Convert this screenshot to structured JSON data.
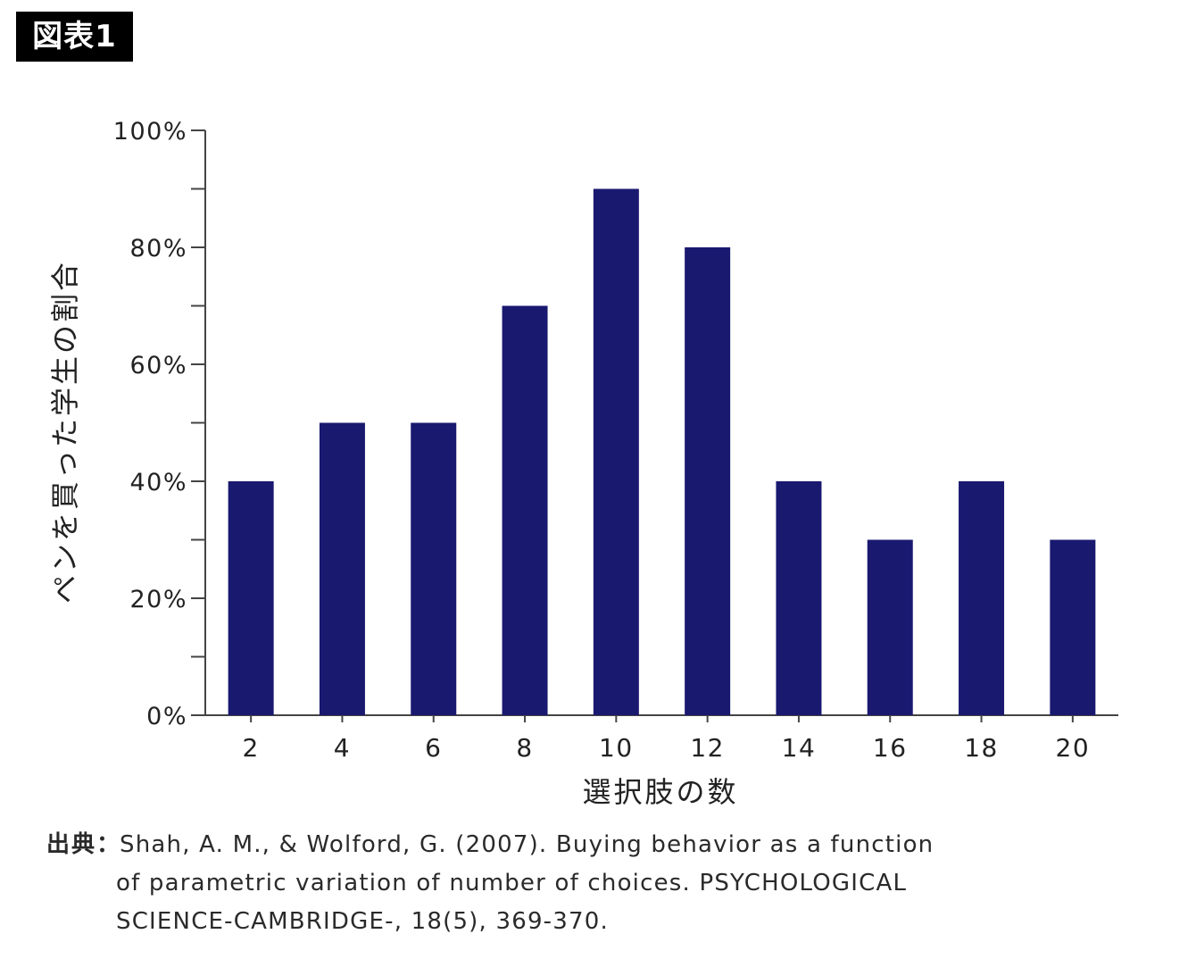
{
  "figure_tag": "図表1",
  "chart_data": {
    "type": "bar",
    "title": "",
    "xlabel": "選択肢の数",
    "ylabel": "ペンを買った学生の割合",
    "categories": [
      "2",
      "4",
      "6",
      "8",
      "10",
      "12",
      "14",
      "16",
      "18",
      "20"
    ],
    "values": [
      40,
      50,
      50,
      70,
      90,
      80,
      40,
      30,
      40,
      30
    ],
    "ylim": [
      0,
      100
    ],
    "yticks": [
      "0%",
      "20%",
      "40%",
      "60%",
      "80%",
      "100%"
    ],
    "y_major_step": 20,
    "y_minor_step": 10,
    "grid": false,
    "legend": "none",
    "bar_color": "#191970",
    "axis_color": "#444444"
  },
  "citation": {
    "prefix": "出典：",
    "line1": "Shah, A. M., & Wolford, G. (2007). Buying behavior as a function",
    "line2": "of parametric variation of number of choices. PSYCHOLOGICAL",
    "line3": "SCIENCE-CAMBRIDGE-, 18(5), 369-370."
  }
}
